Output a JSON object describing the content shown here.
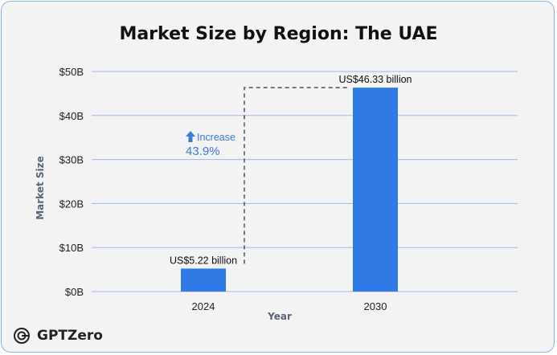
{
  "brand": {
    "name": "GPTZero",
    "icon": "gptzero-logo-icon"
  },
  "colors": {
    "bar": "#2f7ae5",
    "grid": "#9cbbe8",
    "annotation": "#3a7bd5",
    "dashed": "#555b66"
  },
  "chart_data": {
    "type": "bar",
    "title": "Market Size by Region: The UAE",
    "xlabel": "Year",
    "ylabel": "Market Size",
    "categories": [
      "2024",
      "2030"
    ],
    "values": [
      5.22,
      46.33
    ],
    "unit": "billion USD",
    "ylim": [
      0,
      50
    ],
    "yticks": [
      0,
      10,
      20,
      30,
      40,
      50
    ],
    "ytick_labels": [
      "$0B",
      "$10B",
      "$20B",
      "$30B",
      "$40B",
      "$50B"
    ],
    "data_labels": [
      "US$5.22 billion",
      "US$46.33 billion"
    ],
    "grid": true,
    "annotation": {
      "label": "Increase",
      "value": "43.9%"
    }
  }
}
